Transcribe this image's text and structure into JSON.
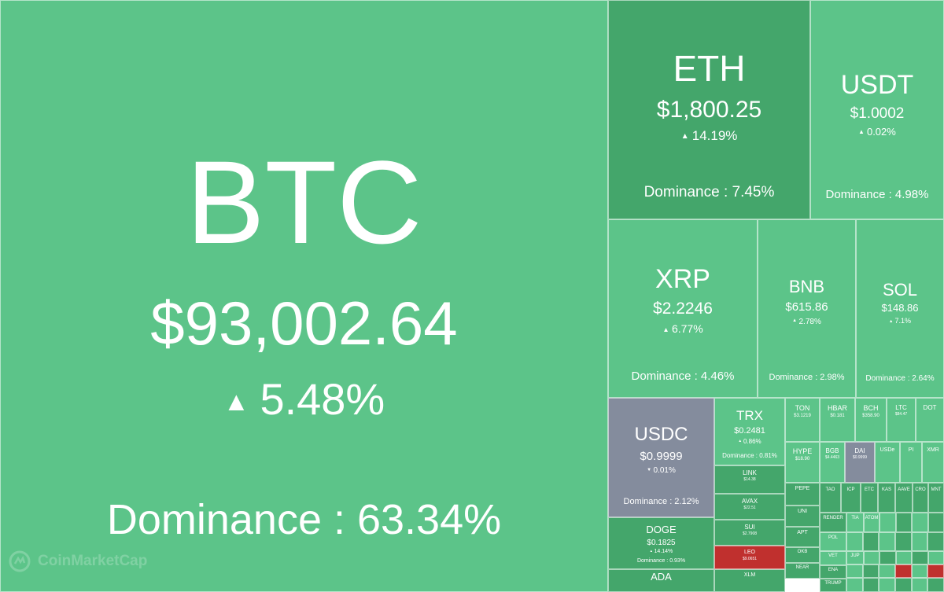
{
  "colors": {
    "up": "#5cc489",
    "up_dark": "#44a66b",
    "down": "#c0302e",
    "stable": "#848c9d"
  },
  "watermark": {
    "text": "CoinMarketCap",
    "icon": "coinmarketcap-logo-icon"
  },
  "chart_data": {
    "type": "treemap",
    "coins": [
      {
        "symbol": "BTC",
        "price": "$93,002.64",
        "change": "5.48%",
        "direction": "up",
        "dominance": "Dominance : 63.34%",
        "dominance_value": 63.34
      },
      {
        "symbol": "ETH",
        "price": "$1,800.25",
        "change": "14.19%",
        "direction": "up",
        "dominance": "Dominance : 7.45%",
        "dominance_value": 7.45,
        "shade": "dark"
      },
      {
        "symbol": "USDT",
        "price": "$1.0002",
        "change": "0.02%",
        "direction": "up",
        "dominance": "Dominance : 4.98%",
        "dominance_value": 4.98
      },
      {
        "symbol": "XRP",
        "price": "$2.2246",
        "change": "6.77%",
        "direction": "up",
        "dominance": "Dominance : 4.46%",
        "dominance_value": 4.46
      },
      {
        "symbol": "BNB",
        "price": "$615.86",
        "change": "2.78%",
        "direction": "up",
        "dominance": "Dominance : 2.98%",
        "dominance_value": 2.98
      },
      {
        "symbol": "SOL",
        "price": "$148.86",
        "change": "7.1%",
        "direction": "up",
        "dominance": "Dominance : 2.64%",
        "dominance_value": 2.64
      },
      {
        "symbol": "USDC",
        "price": "$0.9999",
        "change": "0.01%",
        "direction": "down",
        "dominance": "Dominance : 2.12%",
        "dominance_value": 2.12,
        "shade": "stable"
      },
      {
        "symbol": "TRX",
        "price": "$0.2481",
        "change": "0.86%",
        "direction": "up",
        "dominance": "Dominance : 0.81%",
        "dominance_value": 0.81
      },
      {
        "symbol": "DOGE",
        "price": "$0.1825",
        "change": "14.14%",
        "direction": "up",
        "dominance": "Dominance : 0.93%",
        "dominance_value": 0.93,
        "shade": "dark"
      },
      {
        "symbol": "ADA",
        "price": "",
        "change": "",
        "direction": "up",
        "dominance": "",
        "shade": "dark"
      },
      {
        "symbol": "TON",
        "price": "$3.1219",
        "change": "",
        "direction": "up",
        "dominance": ""
      },
      {
        "symbol": "HBAR",
        "price": "$0.181",
        "change": "",
        "direction": "up",
        "dominance": ""
      },
      {
        "symbol": "BCH",
        "price": "$358.90",
        "change": "",
        "direction": "up",
        "dominance": ""
      },
      {
        "symbol": "LTC",
        "price": "$84.47",
        "change": "",
        "direction": "up",
        "dominance": ""
      },
      {
        "symbol": "DOT",
        "price": "",
        "change": "",
        "direction": "up",
        "dominance": ""
      },
      {
        "symbol": "HYPE",
        "price": "$18.90",
        "change": "",
        "direction": "up",
        "dominance": ""
      },
      {
        "symbol": "BGB",
        "price": "$4.4463",
        "change": "",
        "direction": "up",
        "dominance": ""
      },
      {
        "symbol": "DAI",
        "price": "$0.9999",
        "change": "",
        "direction": "down",
        "dominance": "",
        "shade": "stable"
      },
      {
        "symbol": "USDe",
        "price": "",
        "change": "",
        "direction": "up",
        "dominance": ""
      },
      {
        "symbol": "PI",
        "price": "",
        "change": "",
        "direction": "up",
        "dominance": ""
      },
      {
        "symbol": "XMR",
        "price": "",
        "change": "",
        "direction": "up",
        "dominance": ""
      },
      {
        "symbol": "LINK",
        "price": "$14.38",
        "change": "",
        "direction": "up",
        "dominance": "",
        "shade": "dark"
      },
      {
        "symbol": "AVAX",
        "price": "$22.51",
        "change": "",
        "direction": "up",
        "dominance": "",
        "shade": "dark"
      },
      {
        "symbol": "SUI",
        "price": "$2.7908",
        "change": "",
        "direction": "up",
        "dominance": "",
        "shade": "dark"
      },
      {
        "symbol": "LEO",
        "price": "$9.0651",
        "change": "",
        "direction": "down",
        "dominance": "",
        "shade": "down"
      },
      {
        "symbol": "XLM",
        "price": "",
        "change": "",
        "direction": "up",
        "dominance": "",
        "shade": "dark"
      },
      {
        "symbol": "PEPE",
        "price": "",
        "change": "",
        "direction": "up",
        "dominance": "",
        "shade": "dark"
      },
      {
        "symbol": "UNI",
        "price": "",
        "change": "",
        "direction": "up",
        "dominance": "",
        "shade": "dark"
      },
      {
        "symbol": "APT",
        "price": "",
        "change": "",
        "direction": "up",
        "dominance": "",
        "shade": "dark"
      },
      {
        "symbol": "OKB",
        "price": "",
        "change": "",
        "direction": "up",
        "dominance": "",
        "shade": "dark"
      },
      {
        "symbol": "NEAR",
        "price": "",
        "change": "",
        "direction": "up",
        "dominance": "",
        "shade": "dark"
      },
      {
        "symbol": "TAO",
        "price": "",
        "change": "",
        "direction": "up",
        "dominance": "",
        "shade": "dark"
      },
      {
        "symbol": "ICP",
        "price": "",
        "change": "",
        "direction": "up",
        "dominance": "",
        "shade": "dark"
      },
      {
        "symbol": "ETC",
        "price": "",
        "change": "",
        "direction": "up",
        "dominance": "",
        "shade": "dark"
      },
      {
        "symbol": "KAS",
        "price": "",
        "change": "",
        "direction": "up",
        "dominance": "",
        "shade": "dark"
      },
      {
        "symbol": "AAVE",
        "price": "",
        "change": "",
        "direction": "up",
        "dominance": "",
        "shade": "dark"
      },
      {
        "symbol": "CRO",
        "price": "",
        "change": "",
        "direction": "up",
        "dominance": "",
        "shade": "dark"
      },
      {
        "symbol": "MNT",
        "price": "",
        "change": "",
        "direction": "up",
        "dominance": "",
        "shade": "dark"
      },
      {
        "symbol": "RENDER",
        "price": "",
        "change": "",
        "direction": "up",
        "dominance": "",
        "shade": "dark"
      },
      {
        "symbol": "TIA",
        "price": "",
        "change": "",
        "direction": "up",
        "dominance": ""
      },
      {
        "symbol": "ATOM",
        "price": "",
        "change": "",
        "direction": "up",
        "dominance": ""
      },
      {
        "symbol": "POL",
        "price": "",
        "change": "",
        "direction": "up",
        "dominance": ""
      },
      {
        "symbol": "VET",
        "price": "",
        "change": "",
        "direction": "up",
        "dominance": ""
      },
      {
        "symbol": "ENA",
        "price": "",
        "change": "",
        "direction": "up",
        "dominance": "",
        "shade": "dark"
      },
      {
        "symbol": "JUP",
        "price": "",
        "change": "",
        "direction": "up",
        "dominance": ""
      },
      {
        "symbol": "TRUMP",
        "price": "",
        "change": "",
        "direction": "up",
        "dominance": "",
        "shade": "dark"
      }
    ]
  }
}
